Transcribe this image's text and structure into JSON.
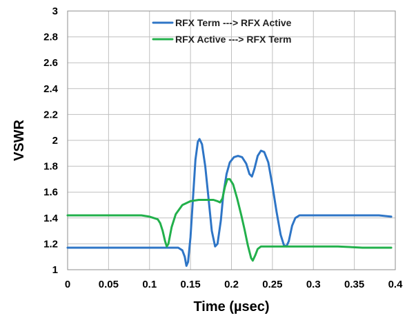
{
  "chart_data": {
    "type": "line",
    "title": "",
    "xlabel": "Time (µsec)",
    "ylabel": "VSWR",
    "xlim": [
      0,
      0.4
    ],
    "ylim": [
      1,
      3
    ],
    "x_ticks": [
      "0",
      "0.05",
      "0.1",
      "0.15",
      "0.2",
      "0.25",
      "0.3",
      "0.35",
      "0.4"
    ],
    "y_ticks": [
      "1",
      "1.2",
      "1.4",
      "1.6",
      "1.8",
      "2",
      "2.2",
      "2.4",
      "2.6",
      "2.8",
      "3"
    ],
    "x_tick_values": [
      0,
      0.05,
      0.1,
      0.15,
      0.2,
      0.25,
      0.3,
      0.35,
      0.4
    ],
    "y_tick_values": [
      1,
      1.2,
      1.4,
      1.6,
      1.8,
      2,
      2.2,
      2.4,
      2.6,
      2.8,
      3
    ],
    "grid": true,
    "legend_position": "top-center",
    "series": [
      {
        "name": "RFX Term ---> RFX Active",
        "color": "#2E75C6",
        "points": [
          [
            0,
            1.17
          ],
          [
            0.02,
            1.17
          ],
          [
            0.05,
            1.17
          ],
          [
            0.08,
            1.17
          ],
          [
            0.1,
            1.17
          ],
          [
            0.12,
            1.17
          ],
          [
            0.135,
            1.17
          ],
          [
            0.14,
            1.15
          ],
          [
            0.143,
            1.1
          ],
          [
            0.145,
            1.03
          ],
          [
            0.147,
            1.06
          ],
          [
            0.15,
            1.25
          ],
          [
            0.153,
            1.55
          ],
          [
            0.156,
            1.85
          ],
          [
            0.159,
            1.99
          ],
          [
            0.161,
            2.01
          ],
          [
            0.164,
            1.97
          ],
          [
            0.168,
            1.8
          ],
          [
            0.172,
            1.55
          ],
          [
            0.176,
            1.3
          ],
          [
            0.18,
            1.18
          ],
          [
            0.183,
            1.2
          ],
          [
            0.187,
            1.38
          ],
          [
            0.19,
            1.58
          ],
          [
            0.194,
            1.74
          ],
          [
            0.198,
            1.83
          ],
          [
            0.203,
            1.87
          ],
          [
            0.208,
            1.88
          ],
          [
            0.213,
            1.87
          ],
          [
            0.218,
            1.82
          ],
          [
            0.222,
            1.74
          ],
          [
            0.225,
            1.72
          ],
          [
            0.228,
            1.78
          ],
          [
            0.232,
            1.88
          ],
          [
            0.236,
            1.92
          ],
          [
            0.24,
            1.91
          ],
          [
            0.245,
            1.83
          ],
          [
            0.25,
            1.65
          ],
          [
            0.255,
            1.45
          ],
          [
            0.26,
            1.27
          ],
          [
            0.264,
            1.19
          ],
          [
            0.267,
            1.18
          ],
          [
            0.27,
            1.22
          ],
          [
            0.274,
            1.34
          ],
          [
            0.278,
            1.4
          ],
          [
            0.283,
            1.42
          ],
          [
            0.3,
            1.42
          ],
          [
            0.33,
            1.42
          ],
          [
            0.36,
            1.42
          ],
          [
            0.38,
            1.42
          ],
          [
            0.395,
            1.41
          ]
        ]
      },
      {
        "name": "RFX Active ---> RFX Term",
        "color": "#22B04B",
        "points": [
          [
            0,
            1.42
          ],
          [
            0.03,
            1.42
          ],
          [
            0.06,
            1.42
          ],
          [
            0.09,
            1.42
          ],
          [
            0.1,
            1.41
          ],
          [
            0.105,
            1.4
          ],
          [
            0.11,
            1.39
          ],
          [
            0.113,
            1.36
          ],
          [
            0.116,
            1.3
          ],
          [
            0.119,
            1.22
          ],
          [
            0.121,
            1.18
          ],
          [
            0.123,
            1.2
          ],
          [
            0.127,
            1.33
          ],
          [
            0.132,
            1.43
          ],
          [
            0.14,
            1.5
          ],
          [
            0.15,
            1.53
          ],
          [
            0.16,
            1.54
          ],
          [
            0.17,
            1.54
          ],
          [
            0.178,
            1.54
          ],
          [
            0.183,
            1.53
          ],
          [
            0.186,
            1.52
          ],
          [
            0.189,
            1.55
          ],
          [
            0.192,
            1.64
          ],
          [
            0.195,
            1.7
          ],
          [
            0.198,
            1.7
          ],
          [
            0.202,
            1.66
          ],
          [
            0.207,
            1.55
          ],
          [
            0.212,
            1.42
          ],
          [
            0.216,
            1.31
          ],
          [
            0.22,
            1.19
          ],
          [
            0.224,
            1.09
          ],
          [
            0.226,
            1.07
          ],
          [
            0.229,
            1.11
          ],
          [
            0.232,
            1.16
          ],
          [
            0.236,
            1.18
          ],
          [
            0.24,
            1.18
          ],
          [
            0.26,
            1.18
          ],
          [
            0.28,
            1.18
          ],
          [
            0.3,
            1.18
          ],
          [
            0.33,
            1.18
          ],
          [
            0.36,
            1.17
          ],
          [
            0.38,
            1.17
          ],
          [
            0.395,
            1.17
          ]
        ]
      }
    ]
  }
}
